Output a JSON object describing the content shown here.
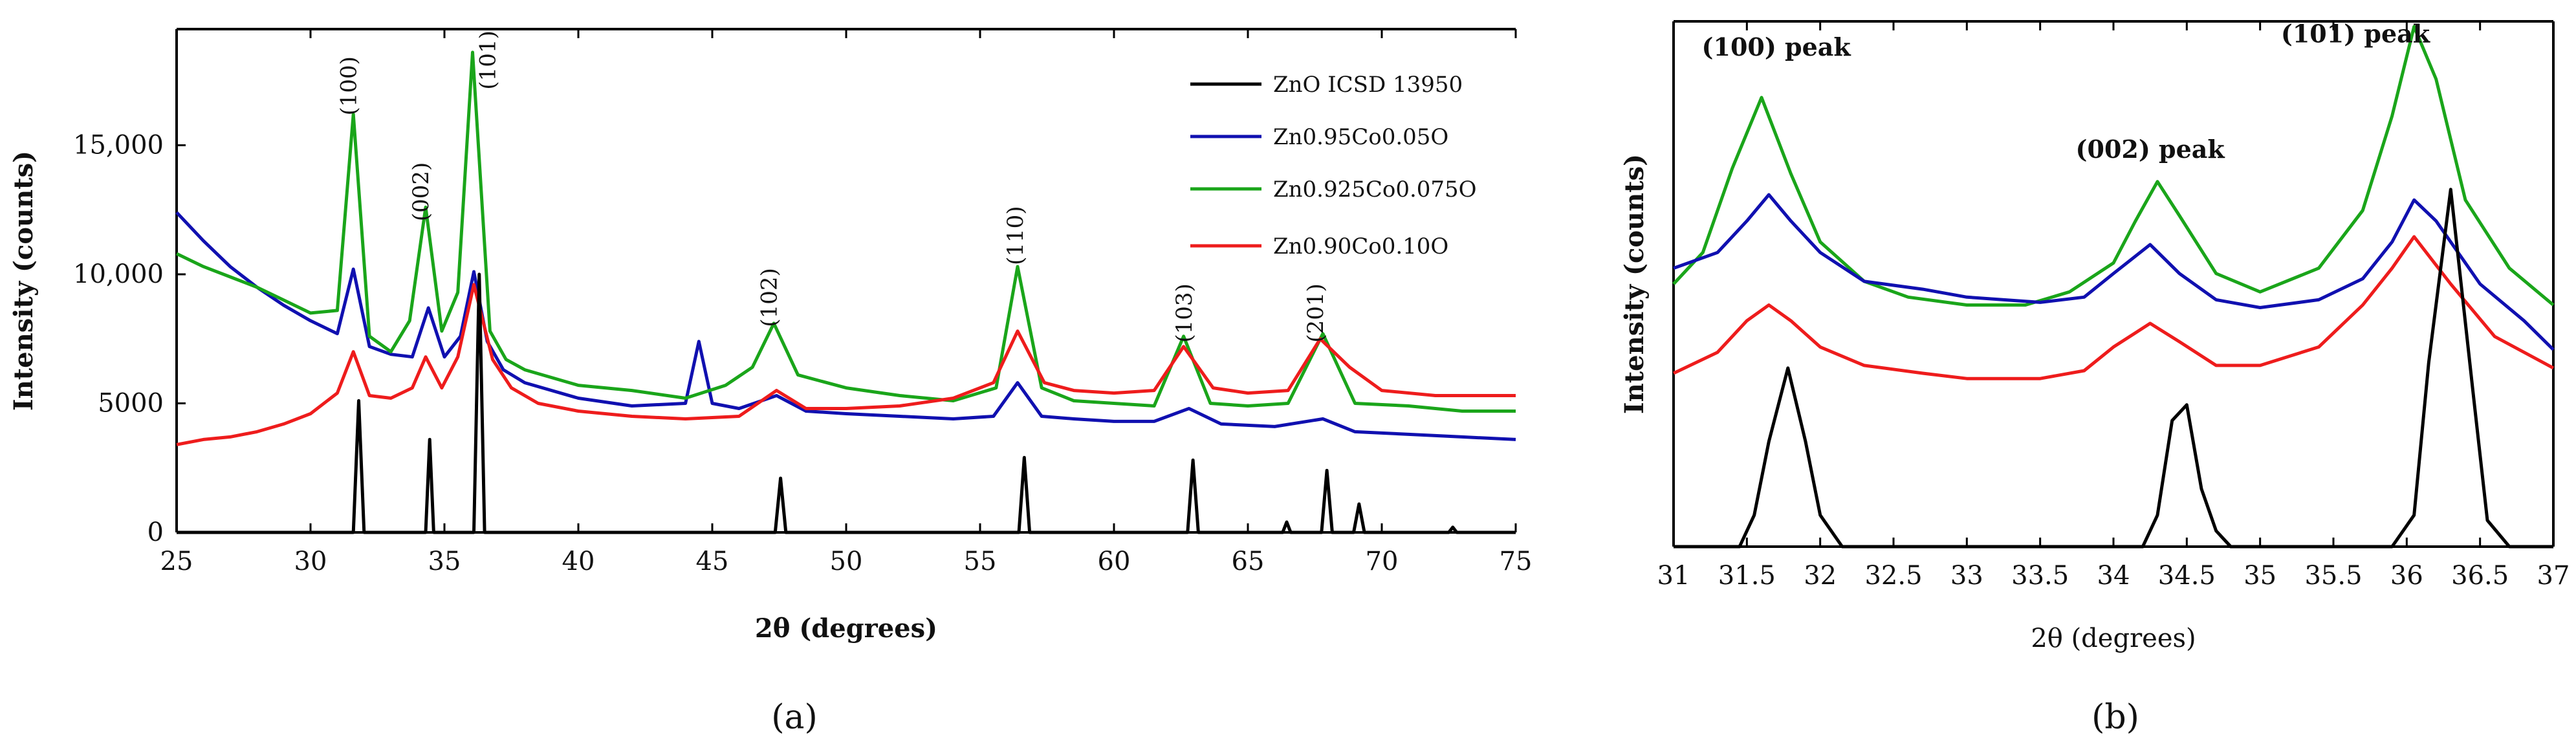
{
  "figure": {
    "panel_labels": [
      "(a)",
      "(b)"
    ]
  },
  "chart_data": [
    {
      "panel": "(a)",
      "type": "line",
      "title": "",
      "xlabel": "2θ (degrees)",
      "ylabel": "Intensity (counts)",
      "xlim": [
        25,
        75
      ],
      "ylim": [
        0,
        19500
      ],
      "x_ticks": [
        25,
        30,
        35,
        40,
        45,
        50,
        55,
        60,
        65,
        70,
        75
      ],
      "y_ticks": [
        0,
        5000,
        10000,
        15000
      ],
      "y_tick_labels": [
        "0",
        "5000",
        "10,000",
        "15,000"
      ],
      "legend_position": "top-right",
      "legend": [
        {
          "label": "ZnO ICSD 13950",
          "color": "#000000"
        },
        {
          "label": "Zn0.95Co0.05O",
          "color": "#1010b0"
        },
        {
          "label": "Zn0.925Co0.075O",
          "color": "#1aa51a"
        },
        {
          "label": "Zn0.90Co0.10O",
          "color": "#ee1c1c"
        }
      ],
      "annotations": [
        {
          "text": "(100)",
          "x": 31.7,
          "y": 17300
        },
        {
          "text": "(002)",
          "x": 34.4,
          "y": 13200
        },
        {
          "text": "(101)",
          "x": 36.9,
          "y": 18300
        },
        {
          "text": "(102)",
          "x": 47.4,
          "y": 9100
        },
        {
          "text": "(110)",
          "x": 56.6,
          "y": 11500
        },
        {
          "text": "(103)",
          "x": 62.9,
          "y": 8500
        },
        {
          "text": "(201)",
          "x": 67.8,
          "y": 8500
        }
      ],
      "series": [
        {
          "name": "Zn0.95Co0.05O",
          "color": "#1010b0",
          "x": [
            25,
            26,
            27,
            28,
            29,
            30,
            31,
            31.6,
            32.2,
            33,
            33.8,
            34.4,
            35,
            35.6,
            36.1,
            36.6,
            37.2,
            38,
            40,
            42,
            44,
            44.5,
            45,
            46,
            47.4,
            48.5,
            50,
            52,
            54,
            55.5,
            56.4,
            57.3,
            58.5,
            60,
            61.5,
            62.8,
            64,
            66,
            67.8,
            69,
            71,
            73,
            75
          ],
          "y": [
            12400,
            11300,
            10300,
            9500,
            8800,
            8200,
            7700,
            10200,
            7200,
            6900,
            6800,
            8700,
            6800,
            7600,
            10100,
            7400,
            6300,
            5800,
            5200,
            4900,
            5000,
            7400,
            5000,
            4800,
            5300,
            4700,
            4600,
            4500,
            4400,
            4500,
            5800,
            4500,
            4400,
            4300,
            4300,
            4800,
            4200,
            4100,
            4400,
            3900,
            3800,
            3700,
            3600
          ]
        },
        {
          "name": "Zn0.925Co0.075O",
          "color": "#1aa51a",
          "x": [
            25,
            26,
            27,
            28,
            29,
            30,
            31,
            31.6,
            32.2,
            33,
            33.7,
            34.3,
            34.9,
            35.5,
            36.05,
            36.7,
            37.3,
            38,
            40,
            42,
            44,
            45.5,
            46.5,
            47.3,
            48.2,
            50,
            52,
            54,
            55.6,
            56.4,
            57.3,
            58.5,
            60,
            61.5,
            62.6,
            63.6,
            65,
            66.5,
            67.8,
            69,
            71,
            73,
            75
          ],
          "y": [
            10800,
            10300,
            9900,
            9500,
            9000,
            8500,
            8600,
            16200,
            7600,
            7000,
            8200,
            12600,
            7800,
            9300,
            18600,
            7800,
            6700,
            6300,
            5700,
            5500,
            5200,
            5700,
            6400,
            8100,
            6100,
            5600,
            5300,
            5100,
            5600,
            10300,
            5600,
            5100,
            5000,
            4900,
            7600,
            5000,
            4900,
            5000,
            7700,
            5000,
            4900,
            4700,
            4700
          ]
        },
        {
          "name": "Zn0.90Co0.10O",
          "color": "#ee1c1c",
          "x": [
            25,
            26,
            27,
            28,
            29,
            30,
            31,
            31.6,
            32.2,
            33,
            33.8,
            34.3,
            34.9,
            35.5,
            36.1,
            36.8,
            37.5,
            38.5,
            40,
            42,
            44,
            46,
            47.4,
            48.5,
            50,
            52,
            54,
            55.5,
            56.4,
            57.4,
            58.5,
            60,
            61.5,
            62.6,
            63.7,
            65,
            66.5,
            67.7,
            68.8,
            70,
            72,
            75
          ],
          "y": [
            3400,
            3600,
            3700,
            3900,
            4200,
            4600,
            5400,
            7000,
            5300,
            5200,
            5600,
            6800,
            5600,
            6800,
            9600,
            6700,
            5600,
            5000,
            4700,
            4500,
            4400,
            4500,
            5500,
            4800,
            4800,
            4900,
            5200,
            5800,
            7800,
            5800,
            5500,
            5400,
            5500,
            7200,
            5600,
            5400,
            5500,
            7500,
            6400,
            5500,
            5300,
            5300
          ]
        },
        {
          "name": "ZnO ICSD 13950",
          "color": "#000000",
          "x": [
            25,
            31.6,
            31.8,
            32.0,
            34.3,
            34.45,
            34.6,
            36.1,
            36.3,
            36.5,
            47.35,
            47.55,
            47.75,
            56.45,
            56.65,
            56.85,
            62.75,
            62.95,
            63.15,
            66.3,
            66.45,
            66.6,
            67.75,
            67.95,
            68.15,
            68.95,
            69.15,
            69.35,
            72.5,
            72.65,
            72.8,
            75
          ],
          "y": [
            0,
            0,
            5100,
            0,
            0,
            3600,
            0,
            0,
            10000,
            0,
            0,
            2100,
            0,
            0,
            2900,
            0,
            0,
            2800,
            0,
            0,
            400,
            0,
            0,
            2400,
            0,
            0,
            1100,
            0,
            0,
            200,
            0,
            0
          ]
        }
      ]
    },
    {
      "panel": "(b)",
      "type": "line",
      "title": "",
      "xlabel": "2θ (degrees)",
      "ylabel": "Intensity (counts)",
      "xlim": [
        31,
        37
      ],
      "ylim": [
        0,
        10
      ],
      "x_ticks": [
        31,
        31.5,
        32,
        32.5,
        33,
        33.5,
        34,
        34.5,
        35,
        35.5,
        36,
        36.5,
        37
      ],
      "x_tick_labels": [
        "31",
        "31.5",
        "32",
        "32.5",
        "33",
        "33.5",
        "34",
        "34.5",
        "35",
        "35.5",
        "36",
        "36.5",
        "37"
      ],
      "y_ticks": [],
      "annotations": [
        {
          "text": "(100) peak",
          "x": 31.7,
          "y": 9.35
        },
        {
          "text": "(002) peak",
          "x": 34.25,
          "y": 7.4
        },
        {
          "text": "(101) peak",
          "x": 35.65,
          "y": 9.6
        }
      ],
      "series": [
        {
          "name": "Zn0.925Co0.075O",
          "color": "#1aa51a",
          "x": [
            31,
            31.2,
            31.4,
            31.6,
            31.8,
            32,
            32.3,
            32.6,
            33,
            33.4,
            33.7,
            34,
            34.15,
            34.3,
            34.45,
            34.7,
            35,
            35.4,
            35.7,
            35.9,
            36.05,
            36.2,
            36.4,
            36.7,
            37
          ],
          "y": [
            5.0,
            5.6,
            7.2,
            8.55,
            7.1,
            5.8,
            5.05,
            4.75,
            4.6,
            4.6,
            4.85,
            5.4,
            6.2,
            6.95,
            6.3,
            5.2,
            4.85,
            5.3,
            6.4,
            8.2,
            9.9,
            8.9,
            6.6,
            5.3,
            4.6
          ]
        },
        {
          "name": "Zn0.95Co0.05O",
          "color": "#1010b0",
          "x": [
            31,
            31.3,
            31.5,
            31.65,
            31.8,
            32,
            32.3,
            32.7,
            33,
            33.5,
            33.8,
            34,
            34.25,
            34.45,
            34.7,
            35,
            35.4,
            35.7,
            35.9,
            36.05,
            36.2,
            36.5,
            36.8,
            37
          ],
          "y": [
            5.3,
            5.6,
            6.2,
            6.7,
            6.2,
            5.6,
            5.05,
            4.9,
            4.75,
            4.65,
            4.75,
            5.2,
            5.75,
            5.2,
            4.7,
            4.55,
            4.7,
            5.1,
            5.8,
            6.6,
            6.2,
            5.0,
            4.3,
            3.75
          ]
        },
        {
          "name": "Zn0.90Co0.10O",
          "color": "#ee1c1c",
          "x": [
            31,
            31.3,
            31.5,
            31.65,
            31.8,
            32,
            32.3,
            32.7,
            33,
            33.5,
            33.8,
            34,
            34.25,
            34.45,
            34.7,
            35,
            35.4,
            35.7,
            35.9,
            36.05,
            36.3,
            36.6,
            37
          ],
          "y": [
            3.3,
            3.7,
            4.3,
            4.6,
            4.3,
            3.8,
            3.45,
            3.3,
            3.2,
            3.2,
            3.35,
            3.8,
            4.25,
            3.9,
            3.45,
            3.45,
            3.8,
            4.6,
            5.3,
            5.9,
            5.0,
            4.0,
            3.4
          ]
        },
        {
          "name": "ZnO ICSD 13950",
          "color": "#000000",
          "x": [
            31,
            31.45,
            31.55,
            31.65,
            31.78,
            31.9,
            32.0,
            32.15,
            34.2,
            34.3,
            34.4,
            34.5,
            34.6,
            34.7,
            34.8,
            35.9,
            36.05,
            36.15,
            36.3,
            36.45,
            36.55,
            36.7,
            37
          ],
          "y": [
            0,
            0,
            0.6,
            2.0,
            3.4,
            2.0,
            0.6,
            0,
            0,
            0.6,
            2.4,
            2.7,
            1.1,
            0.3,
            0,
            0,
            0.6,
            3.5,
            6.8,
            3.0,
            0.5,
            0,
            0
          ]
        }
      ]
    }
  ]
}
